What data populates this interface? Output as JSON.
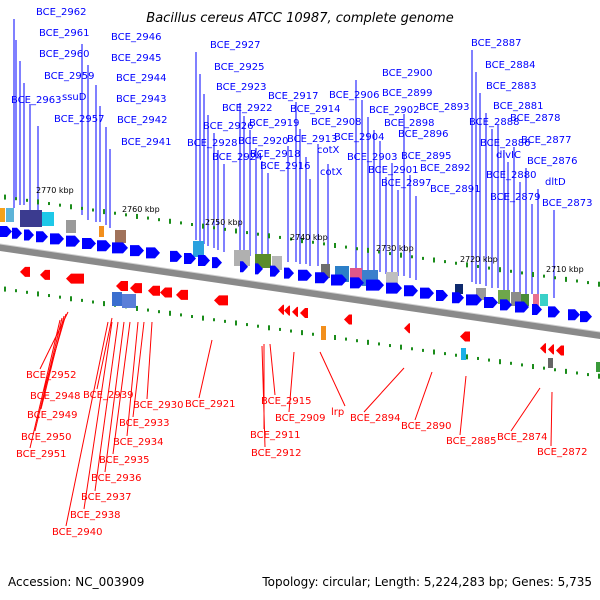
{
  "title": "Bacillus cereus ATCC 10987, complete genome",
  "footer": {
    "accession": "Accession: NC_003909",
    "summary": "Topology: circular; Length: 5,224,283 bp; Genes: 5,735"
  },
  "colors": {
    "plus_strand": "#0000ff",
    "minus_strand": "#ff0000",
    "backbone": "#888888",
    "tick": "#1a8c1a"
  },
  "kbp_labels": [
    "2770 kbp",
    "2760 kbp",
    "2750 kbp",
    "2740 kbp",
    "2730 kbp",
    "2720 kbp",
    "2710 kbp"
  ],
  "plus_genes": [
    "BCE_2962",
    "BCE_2961",
    "BCE_2960",
    "BCE_2959",
    "BCE_2963",
    "ssuD",
    "BCE_2957",
    "BCE_2946",
    "BCE_2945",
    "BCE_2944",
    "BCE_2943",
    "BCE_2942",
    "BCE_2941",
    "BCE_2927",
    "BCE_2925",
    "BCE_2923",
    "BCE_2922",
    "BCE_2926",
    "BCE_2928",
    "BCE_2924",
    "BCE_2917",
    "BCE_2914",
    "BCE_2919",
    "BCE_2920",
    "BCE_2918",
    "BCE_2916",
    "BCE_2913",
    "BCE_2906",
    "BCE_2908",
    "cotX",
    "cotX",
    "BCE_2904",
    "BCE_2903",
    "BCE_2900",
    "BCE_2899",
    "BCE_2902",
    "BCE_2898",
    "BCE_2896",
    "BCE_2901",
    "BCE_2895",
    "BCE_2897",
    "BCE_2893",
    "BCE_2892",
    "BCE_2891",
    "BCE_2887",
    "BCE_2884",
    "BCE_2883",
    "BCE_2881",
    "BCE_2888",
    "BCE_2878",
    "BCE_2886",
    "divIC",
    "BCE_2877",
    "BCE_2880",
    "BCE_2876",
    "BCE_2879",
    "dltD",
    "BCE_2873"
  ],
  "minus_genes": [
    "BCE_2952",
    "BCE_2948",
    "BCE_2949",
    "BCE_2950",
    "BCE_2951",
    "BCE_2939",
    "BCE_2930",
    "BCE_2933",
    "BCE_2934",
    "BCE_2935",
    "BCE_2936",
    "BCE_2937",
    "BCE_2938",
    "BCE_2940",
    "BCE_2921",
    "BCE_2915",
    "BCE_2911",
    "BCE_2912",
    "BCE_2909",
    "lrp",
    "BCE_2894",
    "BCE_2890",
    "BCE_2885",
    "BCE_2874",
    "BCE_2872"
  ]
}
